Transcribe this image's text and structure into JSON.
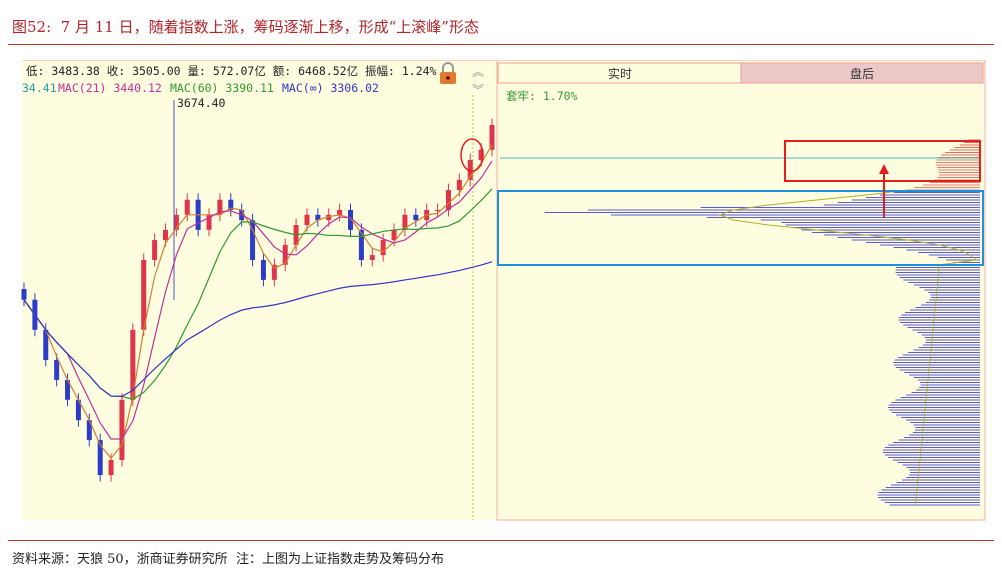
{
  "title": "图52:  7 月 11 日，随着指数上涨，筹码逐渐上移，形成“上滚峰”形态",
  "footer": "资料来源：天狼 50，浙商证券研究所  注：上图为上证指数走势及筹码分布",
  "header": {
    "quote": "低: 3483.38 收: 3505.00 量: 572.07亿 额: 6468.52亿 振幅: 1.24%",
    "ma_partial": "34.41",
    "mas": [
      {
        "label": "MAC(21)",
        "value": "3440.12",
        "color": "#c0309a"
      },
      {
        "label": "MAC(60)",
        "value": "3390.11",
        "color": "#2e9a2e"
      },
      {
        "label": "MAC(∞)",
        "value": "3306.02",
        "color": "#3535c8"
      }
    ],
    "peak_label": "3674.40"
  },
  "tabs": [
    "实时",
    "盘后"
  ],
  "chip_info": "套牢: 1.70%",
  "icons": [
    "lock-icon",
    "double-chevron-up-icon",
    "double-chevron-down-icon"
  ],
  "colors": {
    "up": "#e0344a",
    "down": "#2a3cc8",
    "title": "#b5232a",
    "annotation_red": "#e02020",
    "annotation_blue": "#1e90e0"
  },
  "chart_data": {
    "type": "candlestick",
    "ylabel": "",
    "closes": [
      3180,
      3124,
      3068,
      3031,
      2994,
      2956,
      2919,
      2854,
      2882,
      2994,
      3124,
      3254,
      3291,
      3310,
      3338,
      3366,
      3310,
      3338,
      3366,
      3347,
      3328,
      3254,
      3217,
      3245,
      3282,
      3319,
      3338,
      3328,
      3338,
      3347,
      3310,
      3254,
      3263,
      3291,
      3310,
      3338,
      3328,
      3347,
      3347,
      3384,
      3403,
      3440,
      3459,
      3505
    ],
    "last_close": 3505.0,
    "peak": 3674.4
  }
}
